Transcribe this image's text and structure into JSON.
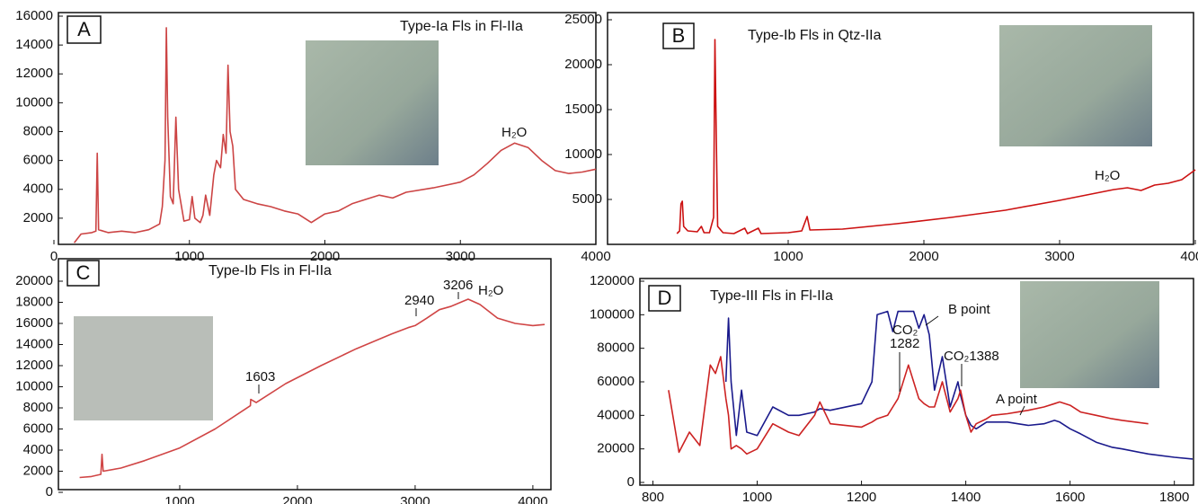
{
  "chart_data": [
    {
      "type": "line",
      "panel": "A",
      "title": "Type-Ia Fls in Fl-IIa",
      "annotations": [
        "H₂O"
      ],
      "xlim": [
        0,
        4000
      ],
      "xticks": [
        0,
        1000,
        2000,
        3000,
        4000
      ],
      "ylim": [
        0,
        16000
      ],
      "yticks": [
        2000,
        4000,
        6000,
        8000,
        10000,
        12000,
        14000,
        16000
      ],
      "x": [
        150,
        200,
        280,
        310,
        320,
        330,
        400,
        500,
        600,
        700,
        780,
        800,
        820,
        830,
        840,
        860,
        880,
        900,
        920,
        960,
        1000,
        1020,
        1040,
        1080,
        1100,
        1120,
        1150,
        1180,
        1200,
        1230,
        1250,
        1270,
        1285,
        1300,
        1320,
        1340,
        1400,
        1500,
        1600,
        1700,
        1800,
        1900,
        2000,
        2100,
        2200,
        2300,
        2400,
        2500,
        2600,
        2800,
        3000,
        3100,
        3200,
        3300,
        3400,
        3500,
        3600,
        3700,
        3800,
        3900,
        4000
      ],
      "series": [
        {
          "color": "#cc4444",
          "values": [
            300,
            900,
            1000,
            1100,
            6500,
            1200,
            1000,
            1100,
            1000,
            1200,
            1600,
            2800,
            6000,
            15200,
            9000,
            3500,
            3000,
            9000,
            4000,
            1800,
            1900,
            3500,
            2000,
            1700,
            2200,
            3600,
            2200,
            5000,
            6000,
            5500,
            7800,
            6500,
            12600,
            8000,
            7000,
            4000,
            3300,
            3000,
            2800,
            2500,
            2300,
            1700,
            2300,
            2500,
            3000,
            3300,
            3600,
            3400,
            3800,
            4100,
            4500,
            5000,
            5800,
            6700,
            7200,
            6900,
            6000,
            5300,
            5100,
            5200,
            5400
          ]
        }
      ]
    },
    {
      "type": "line",
      "panel": "B",
      "title": "Type-Ib Fls in Qtz-IIa",
      "annotations": [
        "H₂O"
      ],
      "xlim": [
        0,
        4000
      ],
      "xticks": [
        1000,
        2000,
        3000,
        4000
      ],
      "ylim": [
        0,
        25000
      ],
      "yticks": [
        5000,
        10000,
        15000,
        20000,
        25000
      ],
      "x": [
        180,
        200,
        210,
        220,
        230,
        260,
        330,
        360,
        380,
        420,
        450,
        460,
        470,
        480,
        520,
        600,
        680,
        700,
        780,
        800,
        1000,
        1100,
        1140,
        1160,
        1400,
        1800,
        2200,
        2600,
        3000,
        3200,
        3400,
        3500,
        3600,
        3700,
        3800,
        3900,
        4000
      ],
      "series": [
        {
          "color": "#cc1111",
          "values": [
            1200,
            1500,
            4500,
            4800,
            2000,
            1500,
            1400,
            2000,
            1300,
            1300,
            3000,
            22800,
            12000,
            2000,
            1300,
            1200,
            1800,
            1200,
            1800,
            1200,
            1300,
            1500,
            3100,
            1600,
            1700,
            2300,
            3000,
            3800,
            4900,
            5500,
            6100,
            6300,
            6000,
            6600,
            6800,
            7200,
            8300
          ]
        }
      ]
    },
    {
      "type": "line",
      "panel": "C",
      "title": "Type-Ib Fls in Fl-IIa",
      "annotations": [
        "1603",
        "2940",
        "3206",
        "H₂O"
      ],
      "xlim": [
        0,
        4100
      ],
      "xticks": [
        1000,
        2000,
        3000,
        4000
      ],
      "ylim": [
        0,
        20000
      ],
      "yticks": [
        0,
        2000,
        4000,
        6000,
        8000,
        10000,
        12000,
        14000,
        16000,
        18000,
        20000
      ],
      "x": [
        150,
        250,
        330,
        340,
        350,
        500,
        700,
        1000,
        1300,
        1600,
        1603,
        1650,
        1900,
        2200,
        2500,
        2800,
        2940,
        3000,
        3100,
        3206,
        3300,
        3450,
        3550,
        3700,
        3850,
        4000,
        4100
      ],
      "series": [
        {
          "color": "#d04545",
          "values": [
            1400,
            1500,
            1700,
            3600,
            2000,
            2300,
            3000,
            4200,
            6000,
            8200,
            8800,
            8500,
            10300,
            12000,
            13600,
            15000,
            15600,
            15800,
            16500,
            17300,
            17600,
            18300,
            17800,
            16500,
            16000,
            15800,
            15900
          ]
        }
      ]
    },
    {
      "type": "line",
      "panel": "D",
      "title": "Type-III Fls in Fl-IIa",
      "annotations": [
        "CO₂",
        "1282",
        "CO₂1388"
      ],
      "xlim": [
        775,
        1835
      ],
      "xticks": [
        800,
        1000,
        1200,
        1400,
        1600,
        1800
      ],
      "ylim": [
        0,
        120000
      ],
      "yticks": [
        0,
        20000,
        40000,
        60000,
        80000,
        100000,
        120000
      ],
      "x": [
        830,
        850,
        870,
        890,
        910,
        920,
        930,
        940,
        945,
        950,
        960,
        970,
        980,
        1000,
        1030,
        1060,
        1080,
        1110,
        1120,
        1140,
        1200,
        1220,
        1230,
        1250,
        1260,
        1270,
        1275,
        1290,
        1300,
        1310,
        1320,
        1330,
        1340,
        1355,
        1370,
        1385,
        1390,
        1400,
        1410,
        1420,
        1440,
        1450,
        1480,
        1500,
        1520,
        1550,
        1570,
        1580,
        1600,
        1620,
        1650,
        1680,
        1700,
        1750,
        1800,
        1835
      ],
      "series": [
        {
          "name": "B point",
          "color": "#1a1a8c",
          "values": [
            null,
            null,
            null,
            null,
            null,
            null,
            null,
            60000,
            98000,
            60000,
            28000,
            55000,
            30000,
            28000,
            45000,
            40000,
            40000,
            42000,
            44000,
            43000,
            47000,
            60000,
            100000,
            102000,
            90000,
            102000,
            102000,
            102000,
            102000,
            92000,
            100000,
            88000,
            55000,
            75000,
            45000,
            60000,
            52000,
            40000,
            34000,
            32000,
            36000,
            36000,
            36000,
            35000,
            34000,
            35000,
            37000,
            36000,
            32000,
            29000,
            24000,
            21000,
            20000,
            17000,
            15000,
            14000
          ]
        },
        {
          "name": "A point",
          "color": "#cc2222",
          "values": [
            55000,
            18000,
            30000,
            22000,
            70000,
            65000,
            75000,
            50000,
            40000,
            20000,
            22000,
            20000,
            17000,
            20000,
            35000,
            30000,
            28000,
            40000,
            48000,
            35000,
            33000,
            36000,
            38000,
            40000,
            45000,
            50000,
            55000,
            70000,
            60000,
            50000,
            47000,
            45000,
            45000,
            60000,
            42000,
            50000,
            55000,
            40000,
            30000,
            35000,
            38000,
            40000,
            41000,
            42000,
            43000,
            45000,
            47000,
            48000,
            46000,
            42000,
            40000,
            38000,
            37000,
            35000,
            null,
            null
          ]
        }
      ]
    }
  ]
}
